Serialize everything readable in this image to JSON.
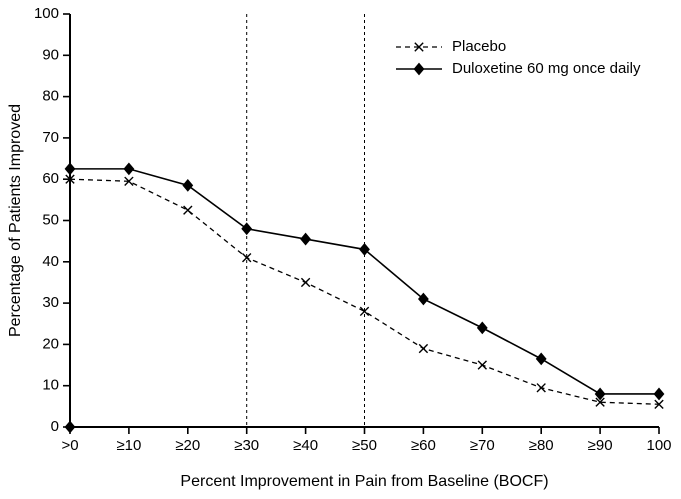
{
  "chart_data": {
    "type": "line",
    "title": "",
    "xlabel": "Percent Improvement in Pain from Baseline (BOCF)",
    "ylabel": "Percentage of Patients Improved",
    "categories": [
      ">0",
      "≥10",
      "≥20",
      "≥30",
      "≥40",
      "≥50",
      "≥60",
      "≥70",
      "≥80",
      "≥90",
      "100"
    ],
    "ylim": [
      0,
      100
    ],
    "ytick_step": 10,
    "ytick_labels": [
      "0",
      "10",
      "20",
      "30",
      "40",
      "50",
      "60",
      "70",
      "80",
      "90",
      "100"
    ],
    "grid": false,
    "legend_position": "top-right",
    "reference_vlines": [
      "≥30",
      "≥50"
    ],
    "series": [
      {
        "name": "Placebo",
        "marker": "x",
        "line_style": "dashed",
        "color": "#000000",
        "values": [
          60,
          59.5,
          52.5,
          41,
          35,
          28,
          19,
          15,
          9.5,
          6,
          5.5
        ]
      },
      {
        "name": "Duloxetine 60 mg once daily",
        "marker": "diamond",
        "line_style": "solid",
        "color": "#000000",
        "values": [
          62.5,
          62.5,
          58.5,
          48,
          45.5,
          43,
          31,
          24,
          16.5,
          8,
          8
        ]
      }
    ],
    "extra_points": [
      {
        "category": ">0",
        "value": 0,
        "marker": "diamond"
      }
    ]
  }
}
